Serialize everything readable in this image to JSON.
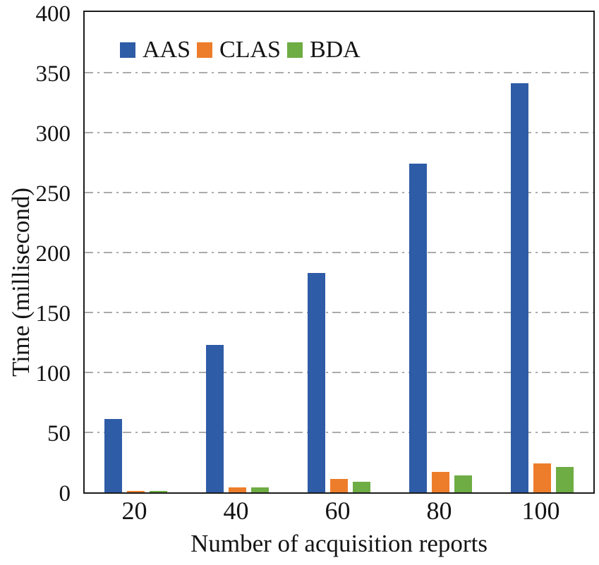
{
  "figure": {
    "background": "#ffffff",
    "axis_color": "#1c1c1c",
    "text_color": "#141414"
  },
  "chart_data": {
    "type": "bar",
    "title": "",
    "xlabel": "Number of acquisition reports",
    "ylabel": "Time (millisecond)",
    "categories": [
      "20",
      "40",
      "60",
      "80",
      "100"
    ],
    "series": [
      {
        "name": "AAS",
        "color": "#2F5CA7",
        "values": [
          61,
          123,
          183,
          274,
          341
        ]
      },
      {
        "name": "CLAS",
        "color": "#ED7D2B",
        "values": [
          1,
          4,
          11,
          17,
          24
        ]
      },
      {
        "name": "BDA",
        "color": "#6EAC44",
        "values": [
          1,
          4,
          9,
          14,
          21
        ]
      }
    ],
    "ylim": [
      0,
      400
    ],
    "yticks": [
      0,
      50,
      100,
      150,
      200,
      250,
      300,
      350,
      400
    ],
    "grid": {
      "visible": true,
      "style": "dash-dot",
      "color": "#ABABAB",
      "levels": [
        50,
        100,
        150,
        200,
        250,
        300,
        350
      ]
    },
    "legend": {
      "position": "top-left-inside",
      "entries": [
        "AAS",
        "CLAS",
        "BDA"
      ]
    }
  }
}
